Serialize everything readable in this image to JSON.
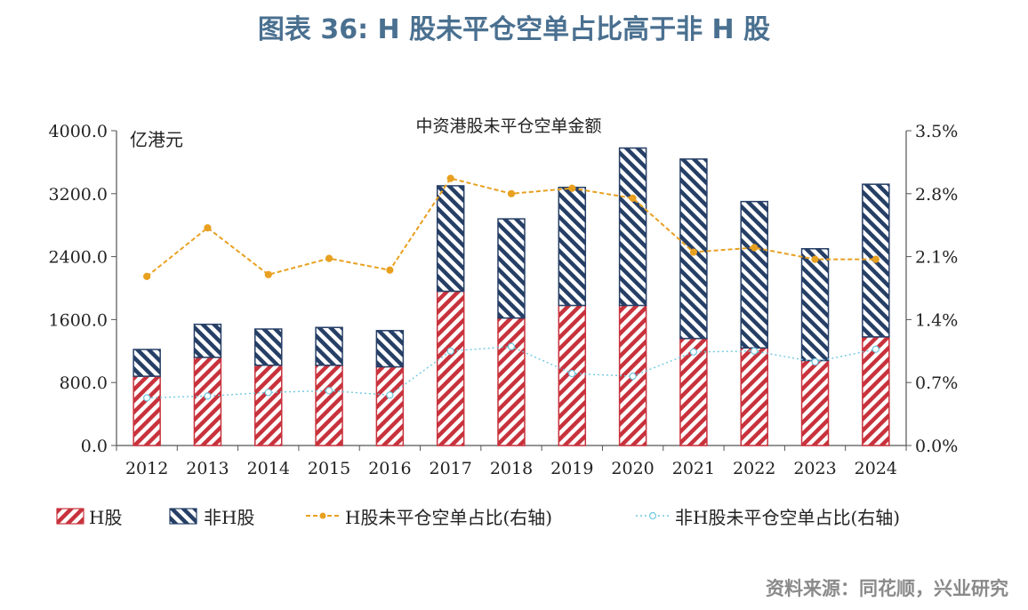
{
  "title": "图表 36: H 股未平仓空单占比高于非 H 股",
  "source": "资料来源：同花顺，兴业研究",
  "chart_data": {
    "type": "bar",
    "subtitle": "中资港股未平仓空单金额",
    "y_unit": "亿港元",
    "categories": [
      "2012",
      "2013",
      "2014",
      "2015",
      "2016",
      "2017",
      "2018",
      "2019",
      "2020",
      "2021",
      "2022",
      "2023",
      "2024"
    ],
    "y_left": {
      "min": 0,
      "max": 4000,
      "step": 800,
      "ticks": [
        "0.0",
        "800.0",
        "1600.0",
        "2400.0",
        "3200.0",
        "4000.0"
      ]
    },
    "y_right": {
      "min": 0,
      "max": 3.5,
      "step": 0.7,
      "ticks": [
        "0.0%",
        "0.7%",
        "1.4%",
        "2.1%",
        "2.8%",
        "3.5%"
      ]
    },
    "bar_series": [
      {
        "name": "H股",
        "color": "#c8323c",
        "stack": "total",
        "values": [
          880,
          1120,
          1020,
          1020,
          1000,
          1960,
          1620,
          1780,
          1780,
          1360,
          1240,
          1080,
          1380
        ]
      },
      {
        "name": "非H股",
        "color": "#263f66",
        "stack": "total",
        "values": [
          340,
          420,
          460,
          480,
          460,
          1340,
          1260,
          1500,
          2000,
          2280,
          1860,
          1420,
          1940
        ]
      }
    ],
    "line_series": [
      {
        "name": "H股未平仓空单占比(右轴)",
        "axis": "right",
        "color": "#e8a020",
        "values": [
          1.88,
          2.42,
          1.9,
          2.08,
          1.95,
          2.97,
          2.8,
          2.86,
          2.75,
          2.15,
          2.2,
          2.07,
          2.07
        ]
      },
      {
        "name": "非H股未平仓空单占比(右轴)",
        "axis": "right",
        "color": "#70c8e0",
        "values": [
          0.53,
          0.55,
          0.59,
          0.61,
          0.56,
          1.05,
          1.1,
          0.8,
          0.77,
          1.04,
          1.05,
          0.93,
          1.07
        ]
      }
    ],
    "legend_position": "bottom",
    "grid": false
  }
}
